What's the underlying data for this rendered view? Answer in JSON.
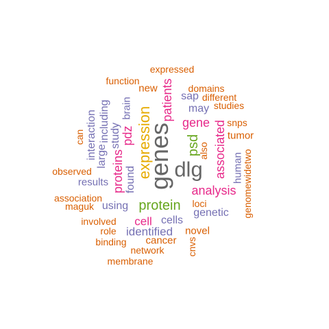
{
  "palette": {
    "orange": "#D95F02",
    "purple": "#7570B3",
    "magenta": "#E7298A",
    "green": "#66A61E",
    "gold": "#E6AB02",
    "gray": "#666666"
  },
  "words": [
    {
      "text": "genes",
      "color": "gray",
      "rotated": true
    },
    {
      "text": "dlg",
      "color": "gray",
      "rotated": false
    },
    {
      "text": "expression",
      "color": "gold",
      "rotated": true
    },
    {
      "text": "protein",
      "color": "green",
      "rotated": false
    },
    {
      "text": "psd",
      "color": "green",
      "rotated": true
    },
    {
      "text": "analysis",
      "color": "magenta",
      "rotated": false
    },
    {
      "text": "associated",
      "color": "magenta",
      "rotated": true
    },
    {
      "text": "gene",
      "color": "magenta",
      "rotated": false
    },
    {
      "text": "pdz",
      "color": "magenta",
      "rotated": true
    },
    {
      "text": "proteins",
      "color": "magenta",
      "rotated": true
    },
    {
      "text": "patients",
      "color": "magenta",
      "rotated": true
    },
    {
      "text": "cell",
      "color": "magenta",
      "rotated": false
    },
    {
      "text": "identified",
      "color": "purple",
      "rotated": false
    },
    {
      "text": "cells",
      "color": "purple",
      "rotated": false
    },
    {
      "text": "using",
      "color": "purple",
      "rotated": false
    },
    {
      "text": "genetic",
      "color": "purple",
      "rotated": false
    },
    {
      "text": "found",
      "color": "purple",
      "rotated": true
    },
    {
      "text": "study",
      "color": "purple",
      "rotated": true
    },
    {
      "text": "brain",
      "color": "purple",
      "rotated": true
    },
    {
      "text": "large",
      "color": "purple",
      "rotated": true
    },
    {
      "text": "including",
      "color": "purple",
      "rotated": true
    },
    {
      "text": "interaction",
      "color": "purple",
      "rotated": true
    },
    {
      "text": "results",
      "color": "purple",
      "rotated": false
    },
    {
      "text": "human",
      "color": "purple",
      "rotated": true
    },
    {
      "text": "sap",
      "color": "purple",
      "rotated": false
    },
    {
      "text": "may",
      "color": "purple",
      "rotated": false
    },
    {
      "text": "new",
      "color": "orange",
      "rotated": false
    },
    {
      "text": "novel",
      "color": "orange",
      "rotated": false
    },
    {
      "text": "cancer",
      "color": "orange",
      "rotated": false
    },
    {
      "text": "loci",
      "color": "orange",
      "rotated": false
    },
    {
      "text": "also",
      "color": "orange",
      "rotated": true
    },
    {
      "text": "tumor",
      "color": "orange",
      "rotated": false
    },
    {
      "text": "expressed",
      "color": "orange",
      "rotated": false
    },
    {
      "text": "function",
      "color": "orange",
      "rotated": false
    },
    {
      "text": "domains",
      "color": "orange",
      "rotated": false
    },
    {
      "text": "different",
      "color": "orange",
      "rotated": false
    },
    {
      "text": "studies",
      "color": "orange",
      "rotated": false
    },
    {
      "text": "snps",
      "color": "orange",
      "rotated": false
    },
    {
      "text": "genomewidetwo",
      "color": "orange",
      "rotated": true
    },
    {
      "text": "can",
      "color": "orange",
      "rotated": true
    },
    {
      "text": "observed",
      "color": "orange",
      "rotated": false
    },
    {
      "text": "association",
      "color": "orange",
      "rotated": false
    },
    {
      "text": "maguk",
      "color": "orange",
      "rotated": false
    },
    {
      "text": "involved",
      "color": "orange",
      "rotated": false
    },
    {
      "text": "role",
      "color": "orange",
      "rotated": false
    },
    {
      "text": "binding",
      "color": "orange",
      "rotated": false
    },
    {
      "text": "network",
      "color": "orange",
      "rotated": false
    },
    {
      "text": "membrane",
      "color": "orange",
      "rotated": false
    },
    {
      "text": "cnvs",
      "color": "orange",
      "rotated": true
    }
  ]
}
